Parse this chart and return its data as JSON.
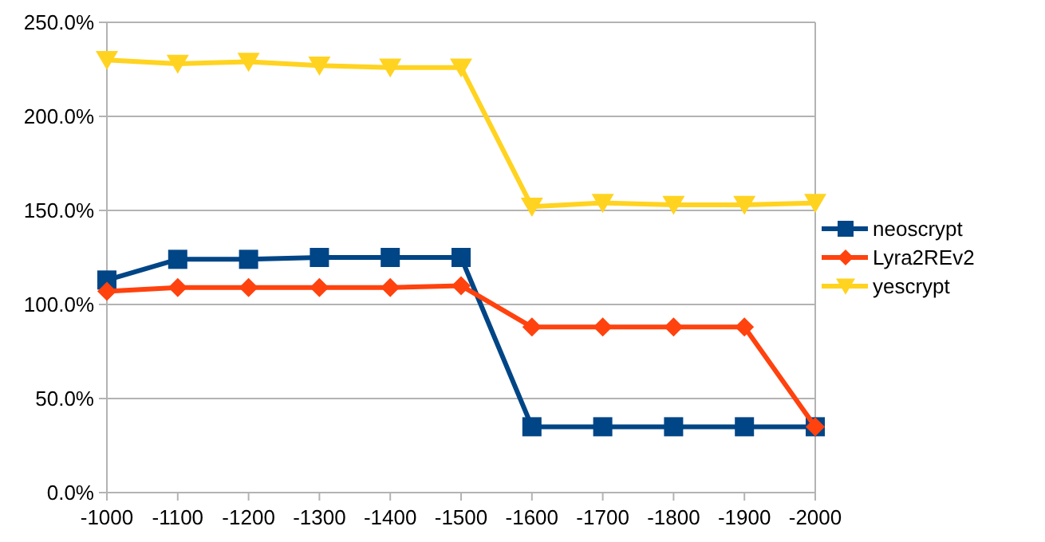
{
  "chart_data": {
    "type": "line",
    "categories": [
      "-1000",
      "-1100",
      "-1200",
      "-1300",
      "-1400",
      "-1500",
      "-1600",
      "-1700",
      "-1800",
      "-1900",
      "-2000"
    ],
    "ylim": [
      0,
      250
    ],
    "yticks": [
      {
        "value": 0,
        "label": "0.0%"
      },
      {
        "value": 50,
        "label": "50.0%"
      },
      {
        "value": 100,
        "label": "100.0%"
      },
      {
        "value": 150,
        "label": "150.0%"
      },
      {
        "value": 200,
        "label": "200.0%"
      },
      {
        "value": 250,
        "label": "250.0%"
      }
    ],
    "grid": "y",
    "legend": "right",
    "series": [
      {
        "name": "neoscrypt",
        "color": "#004586",
        "marker": "square",
        "values": [
          113,
          124,
          124,
          125,
          125,
          125,
          35,
          35,
          35,
          35,
          35
        ]
      },
      {
        "name": "Lyra2REv2",
        "color": "#ff420e",
        "marker": "diamond",
        "values": [
          107,
          109,
          109,
          109,
          109,
          110,
          88,
          88,
          88,
          88,
          35
        ]
      },
      {
        "name": "yescrypt",
        "color": "#ffd320",
        "marker": "triangle",
        "values": [
          230,
          228,
          229,
          227,
          226,
          226,
          152,
          154,
          153,
          153,
          154
        ]
      }
    ]
  }
}
